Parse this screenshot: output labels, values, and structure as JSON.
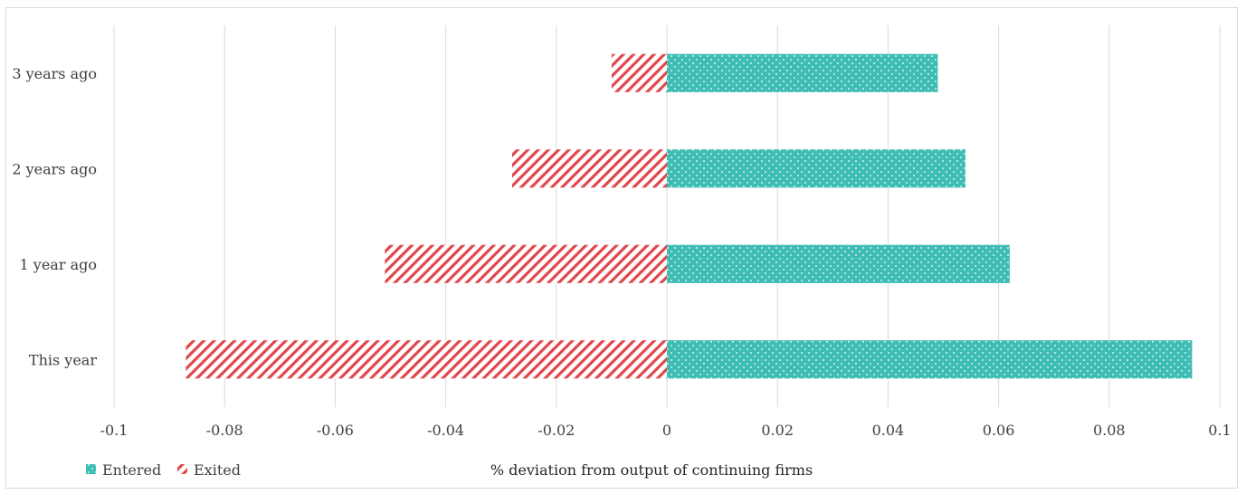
{
  "chart_data": {
    "type": "bar",
    "orientation": "horizontal",
    "stacked": true,
    "categories": [
      "3 years ago",
      "2 years ago",
      "1 year ago",
      "This year"
    ],
    "series": [
      {
        "name": "Entered",
        "values": [
          0.049,
          0.054,
          0.062,
          0.095
        ],
        "color": "#3dbdb3",
        "pattern": "dots"
      },
      {
        "name": "Exited",
        "values": [
          -0.01,
          -0.028,
          -0.051,
          -0.087
        ],
        "color": "#e0474c",
        "pattern": "diagonal-stripes"
      }
    ],
    "xlabel": "% deviation from output of continuing firms",
    "xlim": [
      -0.1,
      0.1
    ],
    "x_ticks": [
      "-0.1",
      "-0.08",
      "-0.06",
      "-0.04",
      "-0.02",
      "0",
      "0.02",
      "0.04",
      "0.06",
      "0.08",
      "0.1"
    ],
    "grid": "vertical",
    "legend_position": "bottom-left"
  }
}
